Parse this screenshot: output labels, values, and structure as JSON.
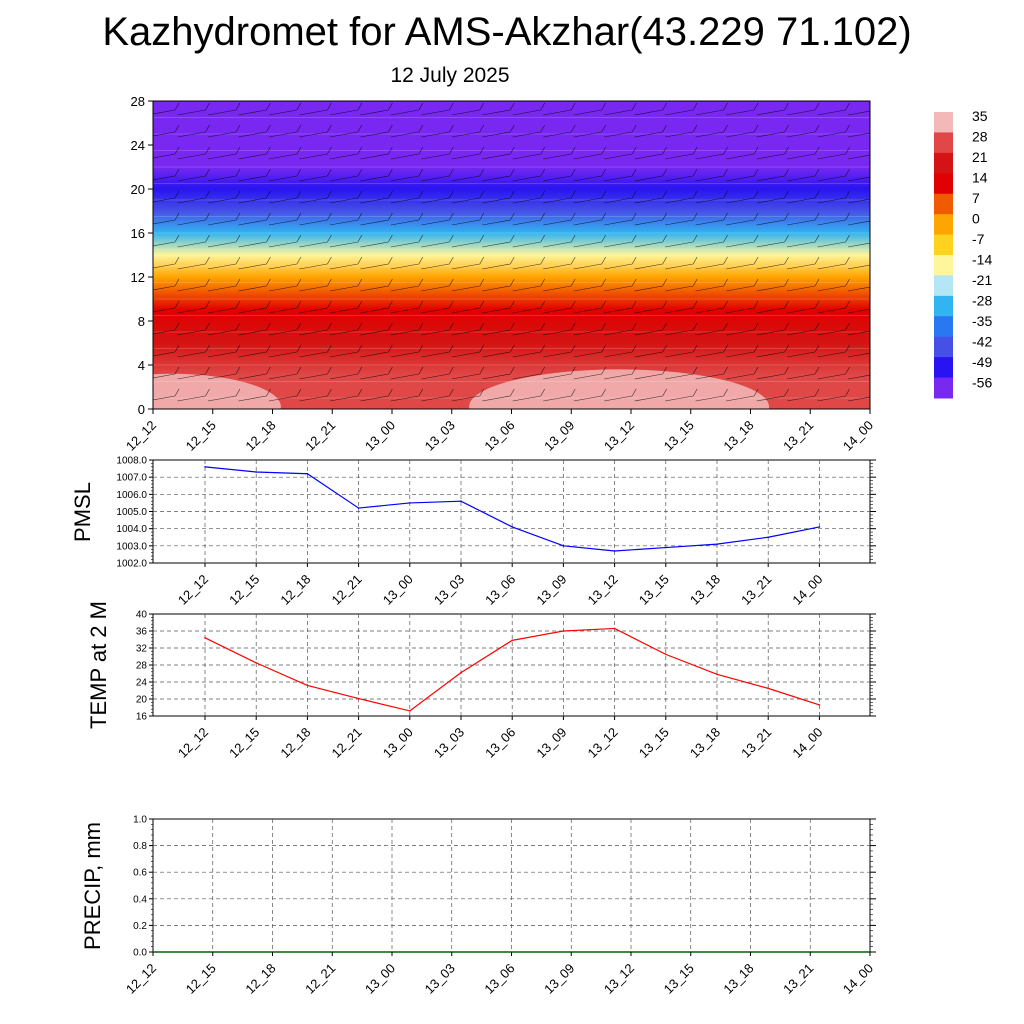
{
  "title": "Kazhydromet for AMS-Akzhar(43.229 71.102)",
  "subtitle": "12 July 2025",
  "chart_data": [
    {
      "type": "heatmap",
      "name": "temperature-cross-section",
      "x_categories": [
        "12_12",
        "12_15",
        "12_18",
        "12_21",
        "13_00",
        "13_03",
        "13_06",
        "13_09",
        "13_12",
        "13_15",
        "13_18",
        "13_21",
        "14_00"
      ],
      "y_ticks": [
        0,
        4,
        8,
        12,
        16,
        20,
        24,
        28
      ],
      "ylim": [
        0,
        28
      ],
      "colorbar": {
        "levels": [
          35,
          28,
          21,
          14,
          7,
          0,
          -7,
          -14,
          -21,
          -28,
          -35,
          -42,
          -49,
          -56
        ],
        "colors": [
          "#f3b9b9",
          "#e04848",
          "#d41414",
          "#e00000",
          "#f05a00",
          "#ffa500",
          "#ffd21e",
          "#fff59b",
          "#b4e6f5",
          "#32b4f0",
          "#2878f0",
          "#4650e6",
          "#2814f0",
          "#7828f0"
        ]
      },
      "value_rows": [
        {
          "y": 1,
          "value": 33
        },
        {
          "y": 3,
          "value": 30
        },
        {
          "y": 6,
          "value": 24
        },
        {
          "y": 9,
          "value": 14
        },
        {
          "y": 12,
          "value": 3
        },
        {
          "y": 14,
          "value": -12
        },
        {
          "y": 16,
          "value": -25
        },
        {
          "y": 18,
          "value": -38
        },
        {
          "y": 20,
          "value": -48
        },
        {
          "y": 22,
          "value": -52
        },
        {
          "y": 24,
          "value": -54
        },
        {
          "y": 27,
          "value": -57
        }
      ],
      "legend": "right"
    },
    {
      "type": "line",
      "name": "pmsl",
      "ylabel": "PMSL",
      "categories": [
        "12_12",
        "12_15",
        "12_18",
        "12_21",
        "13_00",
        "13_03",
        "13_06",
        "13_09",
        "13_12",
        "13_15",
        "13_18",
        "13_21",
        "14_00"
      ],
      "y_ticks": [
        "1002.0",
        "1003.0",
        "1004.0",
        "1005.0",
        "1006.0",
        "1007.0",
        "1008.0"
      ],
      "ylim": [
        1002.0,
        1008.0
      ],
      "values": [
        1007.6,
        1007.3,
        1007.2,
        1005.2,
        1005.5,
        1005.6,
        1004.1,
        1003.0,
        1002.7,
        1002.9,
        1003.1,
        1003.5,
        1004.1
      ],
      "color": "#0000ff",
      "grid": true
    },
    {
      "type": "line",
      "name": "temp-2m",
      "ylabel": "TEMP at 2 M",
      "categories": [
        "12_12",
        "12_15",
        "12_18",
        "12_21",
        "13_00",
        "13_03",
        "13_06",
        "13_09",
        "13_12",
        "13_15",
        "13_18",
        "13_21",
        "14_00"
      ],
      "y_ticks": [
        "16",
        "20",
        "24",
        "28",
        "32",
        "36",
        "40"
      ],
      "ylim": [
        16,
        40
      ],
      "values": [
        34.4,
        28.5,
        23.2,
        20.1,
        17.2,
        26.2,
        33.8,
        36.0,
        36.6,
        30.5,
        25.8,
        22.5,
        18.6
      ],
      "color": "#ff0000",
      "grid": true
    },
    {
      "type": "line",
      "name": "precip",
      "ylabel": "PRECIP, mm",
      "categories": [
        "12_12",
        "12_15",
        "12_18",
        "12_21",
        "13_00",
        "13_03",
        "13_06",
        "13_09",
        "13_12",
        "13_15",
        "13_18",
        "13_21",
        "14_00"
      ],
      "y_ticks": [
        "0.0",
        "0.2",
        "0.4",
        "0.6",
        "0.8",
        "1.0"
      ],
      "ylim": [
        0.0,
        1.0
      ],
      "values": [
        0,
        0,
        0,
        0,
        0,
        0,
        0,
        0,
        0,
        0,
        0,
        0,
        0
      ],
      "color": "#006400",
      "grid": true
    }
  ]
}
